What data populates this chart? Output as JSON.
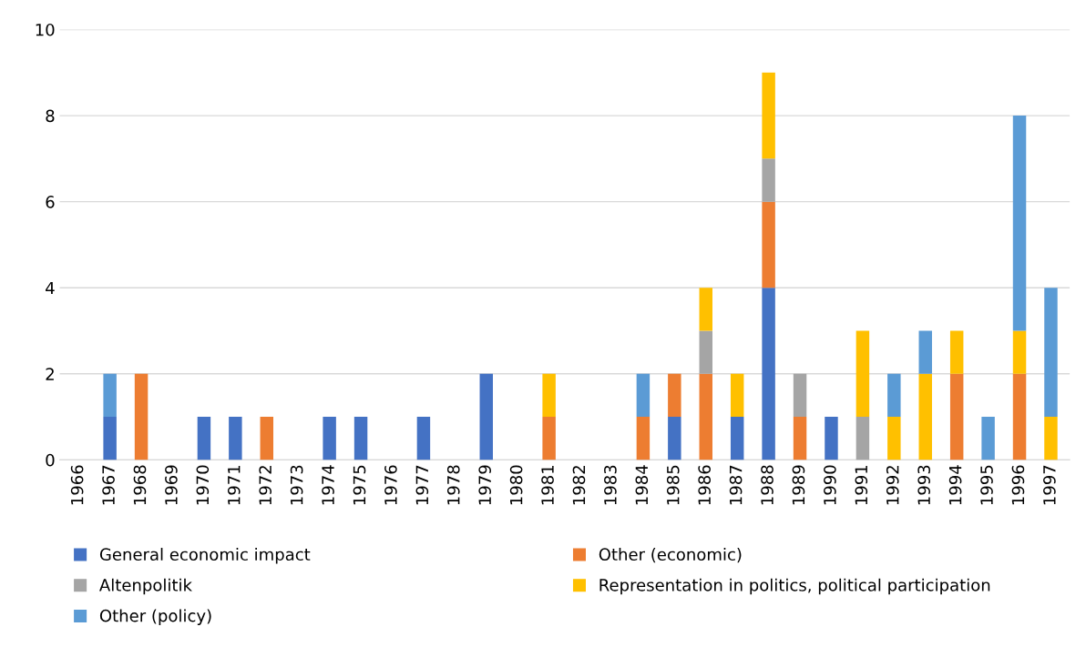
{
  "chart_data": {
    "type": "bar",
    "stacked": true,
    "categories": [
      "1966",
      "1967",
      "1968",
      "1969",
      "1970",
      "1971",
      "1972",
      "1973",
      "1974",
      "1975",
      "1976",
      "1977",
      "1978",
      "1979",
      "1980",
      "1981",
      "1982",
      "1983",
      "1984",
      "1985",
      "1986",
      "1987",
      "1988",
      "1989",
      "1990",
      "1991",
      "1992",
      "1993",
      "1994",
      "1995",
      "1996",
      "1997"
    ],
    "series": [
      {
        "name": "General economic impact",
        "color": "#4472c4",
        "values": [
          null,
          1,
          null,
          null,
          1,
          1,
          null,
          null,
          1,
          1,
          null,
          1,
          null,
          2,
          null,
          null,
          null,
          null,
          null,
          1,
          null,
          1,
          4,
          null,
          1,
          null,
          null,
          null,
          null,
          null,
          null,
          null
        ]
      },
      {
        "name": "Other (economic)",
        "color": "#ed7d31",
        "values": [
          null,
          null,
          2,
          null,
          null,
          null,
          1,
          null,
          null,
          null,
          null,
          null,
          null,
          null,
          null,
          1,
          null,
          null,
          1,
          1,
          2,
          null,
          2,
          1,
          null,
          null,
          null,
          null,
          2,
          null,
          2,
          null
        ]
      },
      {
        "name": "Altenpolitik",
        "color": "#a5a5a5",
        "values": [
          null,
          null,
          null,
          null,
          null,
          null,
          null,
          null,
          null,
          null,
          null,
          null,
          null,
          null,
          null,
          null,
          null,
          null,
          null,
          null,
          1,
          null,
          1,
          1,
          null,
          1,
          null,
          null,
          null,
          null,
          null,
          null
        ]
      },
      {
        "name": "Representation in politics, political participation",
        "color": "#ffc000",
        "values": [
          null,
          null,
          null,
          null,
          null,
          null,
          null,
          null,
          null,
          null,
          null,
          null,
          null,
          null,
          null,
          1,
          null,
          null,
          null,
          null,
          1,
          1,
          2,
          null,
          null,
          2,
          1,
          2,
          1,
          null,
          1,
          1
        ]
      },
      {
        "name": "Other (policy)",
        "color": "#5b9bd5",
        "values": [
          null,
          1,
          null,
          null,
          null,
          null,
          null,
          null,
          null,
          null,
          null,
          null,
          null,
          null,
          null,
          null,
          null,
          null,
          1,
          null,
          null,
          null,
          null,
          null,
          null,
          null,
          1,
          1,
          null,
          1,
          5,
          3
        ]
      }
    ],
    "ylim": [
      0,
      10
    ],
    "yticks": [
      0,
      2,
      4,
      6,
      8,
      10
    ],
    "grid": "y",
    "legend": "bottom"
  }
}
